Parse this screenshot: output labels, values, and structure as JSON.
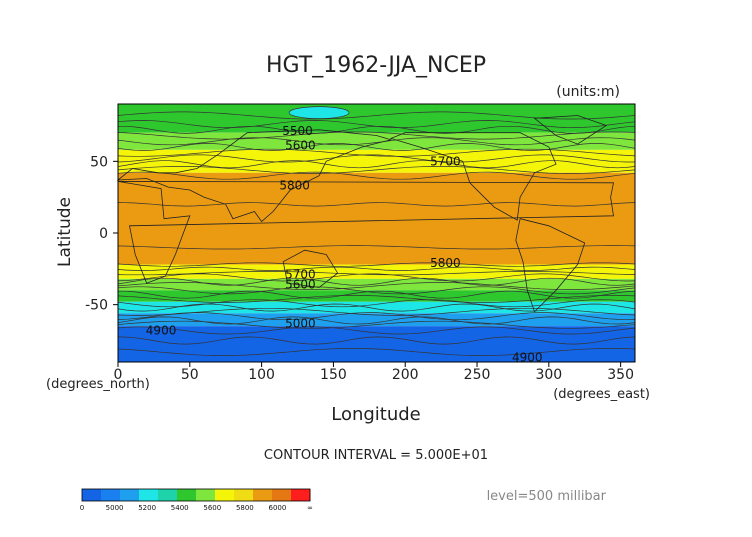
{
  "chart_data": {
    "type": "heatmap",
    "title": "HGT_1962-JJA_NCEP",
    "units_note": "(units:m)",
    "xlabel": "Longitude",
    "ylabel": "Latitude",
    "x_units": "(degrees_east)",
    "y_units": "(degrees_north)",
    "xlim": [
      0,
      360
    ],
    "ylim": [
      -90,
      90
    ],
    "x_ticks": [
      0,
      50,
      100,
      150,
      200,
      250,
      300,
      350
    ],
    "y_ticks": [
      50,
      0,
      -50
    ],
    "contour_interval_text": "CONTOUR INTERVAL = 5.000E+01",
    "level_text": "level=500 millibar",
    "bands": [
      {
        "lat_top": 90,
        "lat_bottom": 70,
        "value": 5450,
        "color": "#2ec82e"
      },
      {
        "lat_top": 70,
        "lat_bottom": 58,
        "value": 5550,
        "color": "#7ee63c"
      },
      {
        "lat_top": 58,
        "lat_bottom": 42,
        "value": 5750,
        "color": "#f5f50a"
      },
      {
        "lat_top": 42,
        "lat_bottom": -22,
        "value": 5850,
        "color": "#eb9b12"
      },
      {
        "lat_top": -22,
        "lat_bottom": -32,
        "value": 5750,
        "color": "#f5f50a"
      },
      {
        "lat_top": -32,
        "lat_bottom": -40,
        "value": 5550,
        "color": "#7ee63c"
      },
      {
        "lat_top": -40,
        "lat_bottom": -48,
        "value": 5450,
        "color": "#2ec82e"
      },
      {
        "lat_top": -48,
        "lat_bottom": -56,
        "value": 5350,
        "color": "#1ee6e6"
      },
      {
        "lat_top": -56,
        "lat_bottom": -65,
        "value": 5150,
        "color": "#1ea0ee"
      },
      {
        "lat_top": -65,
        "lat_bottom": -90,
        "value": 4950,
        "color": "#1464e6"
      }
    ],
    "contour_labels": [
      {
        "text": "5500",
        "lon": 125,
        "lat": 71
      },
      {
        "text": "5600",
        "lon": 127,
        "lat": 61
      },
      {
        "text": "5700",
        "lon": 228,
        "lat": 50
      },
      {
        "text": "5800",
        "lon": 123,
        "lat": 33
      },
      {
        "text": "5800",
        "lon": 228,
        "lat": -21
      },
      {
        "text": "5700",
        "lon": 127,
        "lat": -29
      },
      {
        "text": "5600",
        "lon": 127,
        "lat": -36
      },
      {
        "text": "5000",
        "lon": 127,
        "lat": -63
      },
      {
        "text": "4900",
        "lon": 30,
        "lat": -68
      },
      {
        "text": "4900",
        "lon": 285,
        "lat": -87
      }
    ],
    "colorbar": {
      "tick_labels": [
        "0",
        "5000",
        "5200",
        "5400",
        "5600",
        "5800",
        "6000",
        "∞"
      ],
      "colors": [
        "#1464e6",
        "#1a80f0",
        "#1ea0ee",
        "#1ee6e6",
        "#1ed2aa",
        "#2ec82e",
        "#7ee63c",
        "#f5f50a",
        "#f0dc14",
        "#eb9b12",
        "#e67814",
        "#ff1e1e"
      ]
    }
  }
}
